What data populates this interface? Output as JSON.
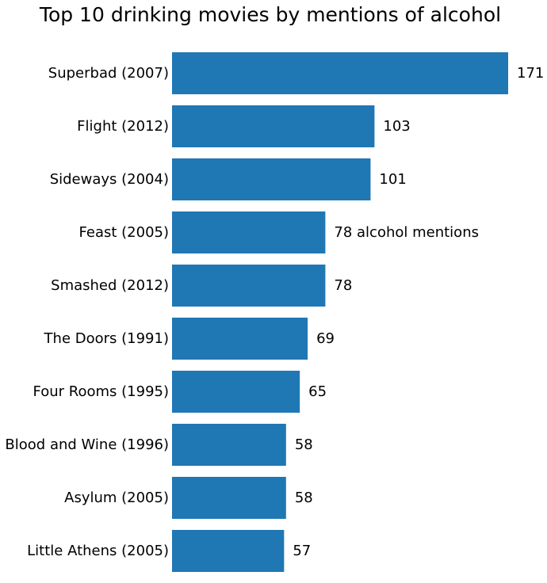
{
  "chart_data": {
    "type": "bar",
    "orientation": "horizontal",
    "title": "Top 10 drinking movies by mentions of alcohol",
    "xlabel": "",
    "ylabel": "",
    "categories": [
      "Superbad (2007)",
      "Flight (2012)",
      "Sideways (2004)",
      "Feast (2005)",
      "Smashed (2012)",
      "The Doors (1991)",
      "Four Rooms (1995)",
      "Blood and Wine (1996)",
      "Asylum (2005)",
      "Little Athens (2005)"
    ],
    "values": [
      171,
      103,
      101,
      78,
      78,
      69,
      65,
      58,
      58,
      57
    ],
    "value_labels": [
      "171",
      "103",
      "101",
      "78 alcohol mentions",
      "78",
      "69",
      "65",
      "58",
      "58",
      "57"
    ],
    "xlim": [
      0,
      171
    ],
    "grid": false,
    "bar_color": "#1f77b4"
  }
}
